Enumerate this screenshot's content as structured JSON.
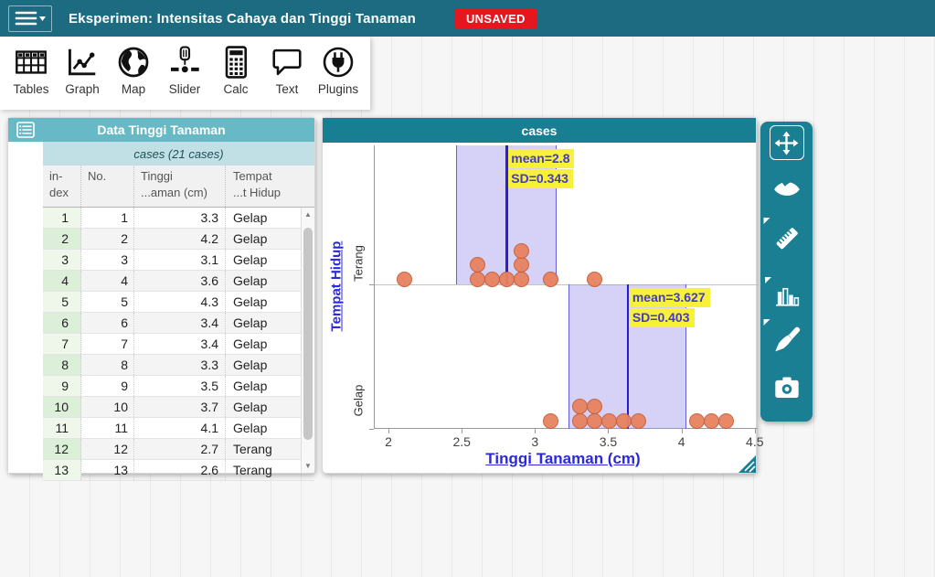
{
  "header": {
    "title": "Eksperimen: Intensitas Cahaya dan Tinggi Tanaman",
    "status_badge": "UNSAVED",
    "bar_color": "#1d6b80",
    "badge_color": "#e3171d"
  },
  "toolbar": {
    "items": [
      {
        "label": "Tables",
        "icon": "table-grid-icon"
      },
      {
        "label": "Graph",
        "icon": "graph-icon"
      },
      {
        "label": "Map",
        "icon": "globe-icon"
      },
      {
        "label": "Slider",
        "icon": "slider-icon"
      },
      {
        "label": "Calc",
        "icon": "calculator-icon"
      },
      {
        "label": "Text",
        "icon": "speech-bubble-icon"
      },
      {
        "label": "Plugins",
        "icon": "plug-icon"
      }
    ]
  },
  "table": {
    "title": "Data Tinggi Tanaman",
    "collection_label": "cases (21 cases)",
    "title_color": "#68b9c6",
    "collection_band_color": "#c0e0e6",
    "columns": [
      {
        "line1": "in-",
        "line2": "dex"
      },
      {
        "line1": "No.",
        "line2": ""
      },
      {
        "line1": "Tinggi",
        "line2": "...aman (cm)"
      },
      {
        "line1": "Tempat",
        "line2": "...t Hidup"
      }
    ],
    "rows": [
      [
        "1",
        "1",
        "3.3",
        "Gelap"
      ],
      [
        "2",
        "2",
        "4.2",
        "Gelap"
      ],
      [
        "3",
        "3",
        "3.1",
        "Gelap"
      ],
      [
        "4",
        "4",
        "3.6",
        "Gelap"
      ],
      [
        "5",
        "5",
        "4.3",
        "Gelap"
      ],
      [
        "6",
        "6",
        "3.4",
        "Gelap"
      ],
      [
        "7",
        "7",
        "3.4",
        "Gelap"
      ],
      [
        "8",
        "8",
        "3.3",
        "Gelap"
      ],
      [
        "9",
        "9",
        "3.5",
        "Gelap"
      ],
      [
        "10",
        "10",
        "3.7",
        "Gelap"
      ],
      [
        "11",
        "11",
        "4.1",
        "Gelap"
      ],
      [
        "12",
        "12",
        "2.7",
        "Terang"
      ],
      [
        "13",
        "13",
        "2.6",
        "Terang"
      ]
    ]
  },
  "graph": {
    "title": "cases",
    "title_color": "#187f93"
  },
  "palette": {
    "background_color": "#1b7f93",
    "buttons": [
      {
        "name": "move",
        "icon": "move-resize-icon"
      },
      {
        "name": "hide-show",
        "icon": "eye-icon"
      },
      {
        "name": "measure",
        "icon": "ruler-icon",
        "submenu": true
      },
      {
        "name": "configuration",
        "icon": "bar-chart-icon",
        "submenu": true
      },
      {
        "name": "style",
        "icon": "paintbrush-icon",
        "submenu": true
      },
      {
        "name": "snapshot",
        "icon": "camera-icon"
      }
    ]
  },
  "chart_data": {
    "type": "scatter",
    "subtype": "dotplot-by-category",
    "title": "cases",
    "xlabel": "Tinggi Tanaman (cm)",
    "ylabel": "Tempat Hidup",
    "xlim": [
      1.9,
      4.52
    ],
    "x_ticks": [
      "2",
      "2.5",
      "3",
      "3.5",
      "4",
      "4.5"
    ],
    "x_tick_values": [
      2,
      2.5,
      3,
      3.5,
      4,
      4.5
    ],
    "categories_top_to_bottom": [
      "Terang",
      "Gelap"
    ],
    "point_color": "#e8825f",
    "band_color": "#968ae8",
    "mean_line_color": "#2a1ed2",
    "annotation_text_color": "#4339cf",
    "annotation_highlight_color": "#f7f13a",
    "series": [
      {
        "category": "Terang",
        "values": [
          2.1,
          2.6,
          2.6,
          2.7,
          2.8,
          2.9,
          2.9,
          2.9,
          3.1,
          3.4
        ],
        "mean": 2.8,
        "sd": 0.343,
        "labels": [
          "mean=2.8",
          "SD=0.343"
        ]
      },
      {
        "category": "Gelap",
        "values": [
          3.1,
          3.3,
          3.3,
          3.4,
          3.4,
          3.5,
          3.6,
          3.7,
          4.1,
          4.2,
          4.3
        ],
        "mean": 3.627,
        "sd": 0.403,
        "labels": [
          "mean=3.627",
          "SD=0.403"
        ]
      }
    ]
  }
}
